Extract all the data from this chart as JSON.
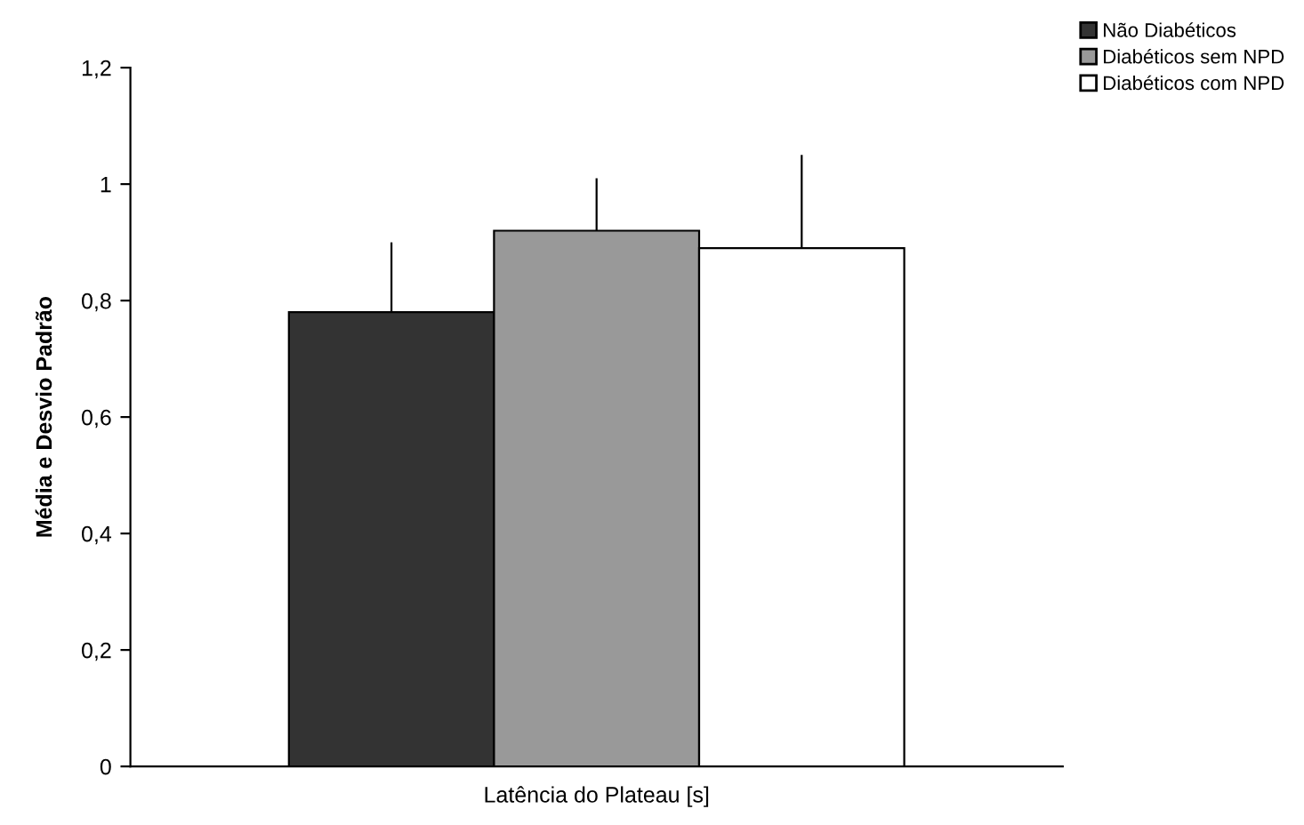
{
  "chart_data": {
    "type": "bar",
    "categories": [
      "Latência do Plateau [s]"
    ],
    "ylabel": "Média e Desvio Padrão",
    "ylim": [
      0,
      1.2
    ],
    "yticks": [
      {
        "value": 0,
        "label": "0"
      },
      {
        "value": 0.2,
        "label": "0,2"
      },
      {
        "value": 0.4,
        "label": "0,4"
      },
      {
        "value": 0.6,
        "label": "0,6"
      },
      {
        "value": 0.8,
        "label": "0,8"
      },
      {
        "value": 1,
        "label": "1"
      },
      {
        "value": 1.2,
        "label": "1,2"
      }
    ],
    "series": [
      {
        "name": "Não Diabéticos",
        "color": "#333333",
        "values": [
          0.78
        ],
        "errors": [
          [
            0.78,
            0.9
          ]
        ]
      },
      {
        "name": "Diabéticos sem NPD",
        "color": "#999999",
        "values": [
          0.92
        ],
        "errors": [
          [
            0.92,
            1.01
          ]
        ]
      },
      {
        "name": "Diabéticos com NPD",
        "color": "#ffffff",
        "values": [
          0.89
        ],
        "errors": [
          [
            0.89,
            1.05
          ]
        ]
      }
    ],
    "grid": false,
    "legend": "top right"
  }
}
